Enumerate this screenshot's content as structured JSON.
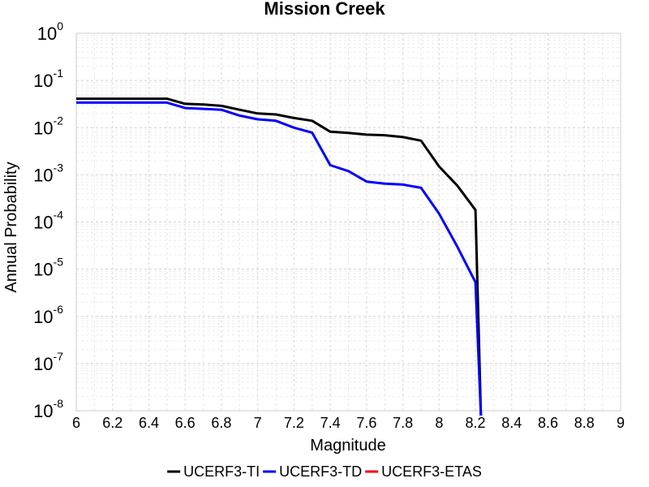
{
  "chart_data": {
    "type": "line",
    "title": "Mission Creek",
    "xlabel": "Magnitude",
    "ylabel": "Annual Probability",
    "xlim": [
      6,
      9
    ],
    "ylim": [
      1e-08,
      1
    ],
    "yscale": "log",
    "grid": true,
    "legend_position": "bottom",
    "x_ticks": [
      "6",
      "6.2",
      "6.4",
      "6.6",
      "6.8",
      "7",
      "7.2",
      "7.4",
      "7.6",
      "7.8",
      "8",
      "8.2",
      "8.4",
      "8.6",
      "8.8",
      "9"
    ],
    "y_ticks": [
      {
        "base": "10",
        "exp": "0",
        "value": 1
      },
      {
        "base": "10",
        "exp": "-1",
        "value": 0.1
      },
      {
        "base": "10",
        "exp": "-2",
        "value": 0.01
      },
      {
        "base": "10",
        "exp": "-3",
        "value": 0.001
      },
      {
        "base": "10",
        "exp": "-4",
        "value": 0.0001
      },
      {
        "base": "10",
        "exp": "-5",
        "value": 1e-05
      },
      {
        "base": "10",
        "exp": "-6",
        "value": 1e-06
      },
      {
        "base": "10",
        "exp": "-7",
        "value": 1e-07
      },
      {
        "base": "10",
        "exp": "-8",
        "value": 1e-08
      }
    ],
    "series": [
      {
        "name": "UCERF3-TI",
        "color": "#000000",
        "x": [
          6.0,
          6.1,
          6.2,
          6.3,
          6.4,
          6.5,
          6.6,
          6.7,
          6.8,
          6.9,
          7.0,
          7.1,
          7.2,
          7.3,
          7.4,
          7.5,
          7.6,
          7.7,
          7.8,
          7.9,
          8.0,
          8.1,
          8.2,
          8.23
        ],
        "y": [
          0.041,
          0.041,
          0.041,
          0.041,
          0.041,
          0.041,
          0.032,
          0.031,
          0.029,
          0.024,
          0.02,
          0.019,
          0.016,
          0.014,
          0.0082,
          0.0077,
          0.0071,
          0.0069,
          0.0063,
          0.0053,
          0.0015,
          0.00059,
          0.00018,
          4e-09
        ]
      },
      {
        "name": "UCERF3-TD",
        "color": "#0000ff",
        "x": [
          6.0,
          6.1,
          6.2,
          6.3,
          6.4,
          6.5,
          6.6,
          6.7,
          6.8,
          6.9,
          7.0,
          7.1,
          7.2,
          7.3,
          7.4,
          7.5,
          7.6,
          7.7,
          7.8,
          7.9,
          8.0,
          8.1,
          8.2,
          8.23
        ],
        "y": [
          0.034,
          0.034,
          0.034,
          0.034,
          0.034,
          0.034,
          0.026,
          0.025,
          0.024,
          0.018,
          0.015,
          0.014,
          0.01,
          0.0078,
          0.0016,
          0.0012,
          0.00072,
          0.00065,
          0.00062,
          0.00053,
          0.00015,
          3e-05,
          5.3e-06,
          4e-09
        ]
      },
      {
        "name": "UCERF3-ETAS",
        "color": "#ff0000",
        "x": [],
        "y": []
      }
    ]
  }
}
